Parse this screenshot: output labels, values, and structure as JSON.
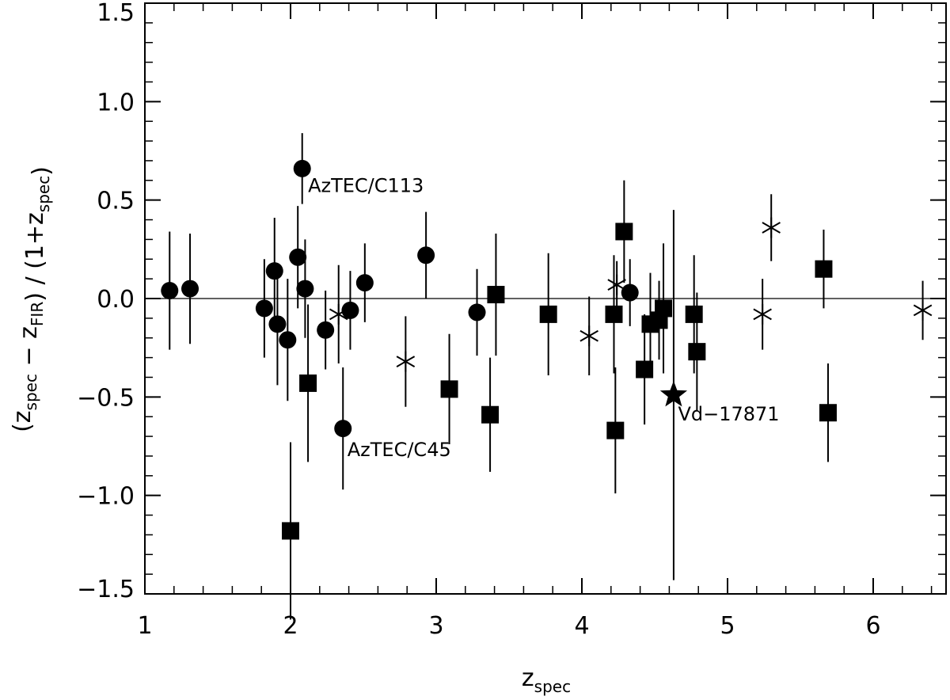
{
  "chart_data": {
    "type": "scatter",
    "title": "",
    "xlabel": {
      "base": "z",
      "sub": "spec"
    },
    "ylabel": {
      "parts": [
        {
          "t": "(z",
          "sub": "spec"
        },
        {
          "t": " − z",
          "sub": "FIR"
        },
        {
          "t": ") / (1+z",
          "sub": "spec"
        },
        {
          "t": ")"
        }
      ]
    },
    "xlim": [
      1.0,
      6.5
    ],
    "ylim": [
      -1.5,
      1.5
    ],
    "x_ticks": [
      1,
      2,
      3,
      4,
      5,
      6
    ],
    "x_tick_labels": [
      "1",
      "2",
      "3",
      "4",
      "5",
      "6"
    ],
    "y_ticks": [
      -1.5,
      -1.0,
      -0.5,
      0.0,
      0.5,
      1.0,
      1.5
    ],
    "y_tick_labels": [
      "−1.5",
      "−1.0",
      "−0.5",
      "0.0",
      "0.5",
      "1.0",
      "1.5"
    ],
    "x_minor_step": 0.2,
    "y_minor_step": 0.1,
    "reference_line_y": 0.0,
    "grid": false,
    "series": [
      {
        "marker": "circle",
        "points": [
          {
            "x": 1.17,
            "y": 0.04,
            "err": 0.3
          },
          {
            "x": 1.31,
            "y": 0.05,
            "err": 0.28
          },
          {
            "x": 1.82,
            "y": -0.05,
            "err": 0.25
          },
          {
            "x": 1.89,
            "y": 0.14,
            "err": 0.27
          },
          {
            "x": 1.91,
            "y": -0.13,
            "err": 0.31
          },
          {
            "x": 1.98,
            "y": -0.21,
            "err": 0.31
          },
          {
            "x": 2.05,
            "y": 0.21,
            "err": 0.26
          },
          {
            "x": 2.08,
            "y": 0.66,
            "err": 0.18
          },
          {
            "x": 2.1,
            "y": 0.05,
            "err": 0.25
          },
          {
            "x": 2.24,
            "y": -0.16,
            "err": 0.2
          },
          {
            "x": 2.36,
            "y": -0.66,
            "err": 0.31
          },
          {
            "x": 2.41,
            "y": -0.06,
            "err": 0.2
          },
          {
            "x": 2.51,
            "y": 0.08,
            "err": 0.2
          },
          {
            "x": 2.93,
            "y": 0.22,
            "err": 0.22
          },
          {
            "x": 3.28,
            "y": -0.07,
            "err": 0.22
          },
          {
            "x": 4.33,
            "y": 0.03,
            "err": 0.17
          }
        ]
      },
      {
        "marker": "square",
        "points": [
          {
            "x": 2.0,
            "y": -1.18,
            "err": 0.45
          },
          {
            "x": 2.12,
            "y": -0.43,
            "err": 0.4
          },
          {
            "x": 3.09,
            "y": -0.46,
            "err": 0.28
          },
          {
            "x": 3.37,
            "y": -0.59,
            "err": 0.29
          },
          {
            "x": 3.41,
            "y": 0.02,
            "err": 0.31
          },
          {
            "x": 3.77,
            "y": -0.08,
            "err": 0.31
          },
          {
            "x": 4.22,
            "y": -0.08,
            "err": 0.3
          },
          {
            "x": 4.23,
            "y": -0.67,
            "err": 0.32
          },
          {
            "x": 4.29,
            "y": 0.34,
            "err": 0.26
          },
          {
            "x": 4.43,
            "y": -0.36,
            "err": 0.28
          },
          {
            "x": 4.47,
            "y": -0.13,
            "err": 0.26
          },
          {
            "x": 4.53,
            "y": -0.11,
            "err": 0.2
          },
          {
            "x": 4.56,
            "y": -0.05,
            "err": 0.33
          },
          {
            "x": 4.77,
            "y": -0.08,
            "err": 0.3
          },
          {
            "x": 4.79,
            "y": -0.27,
            "err": 0.3
          },
          {
            "x": 5.66,
            "y": 0.15,
            "err": 0.2
          },
          {
            "x": 5.69,
            "y": -0.58,
            "err": 0.25
          }
        ]
      },
      {
        "marker": "asterisk",
        "points": [
          {
            "x": 2.33,
            "y": -0.08,
            "err": 0.25
          },
          {
            "x": 2.79,
            "y": -0.32,
            "err": 0.23
          },
          {
            "x": 4.05,
            "y": -0.19,
            "err": 0.2
          },
          {
            "x": 4.24,
            "y": 0.07,
            "err": 0.12
          },
          {
            "x": 5.24,
            "y": -0.08,
            "err": 0.18
          },
          {
            "x": 5.3,
            "y": 0.36,
            "err": 0.17
          },
          {
            "x": 6.34,
            "y": -0.06,
            "err": 0.15
          }
        ]
      },
      {
        "marker": "star",
        "points": [
          {
            "x": 4.63,
            "y": -0.49,
            "err": 0.94
          }
        ]
      }
    ],
    "annotations": [
      {
        "text": "AzTEC/C113",
        "x": 2.12,
        "y": 0.54
      },
      {
        "text": "AzTEC/C45",
        "x": 2.39,
        "y": -0.8
      },
      {
        "text": "Vd−17871",
        "x": 4.66,
        "y": -0.62
      }
    ]
  }
}
